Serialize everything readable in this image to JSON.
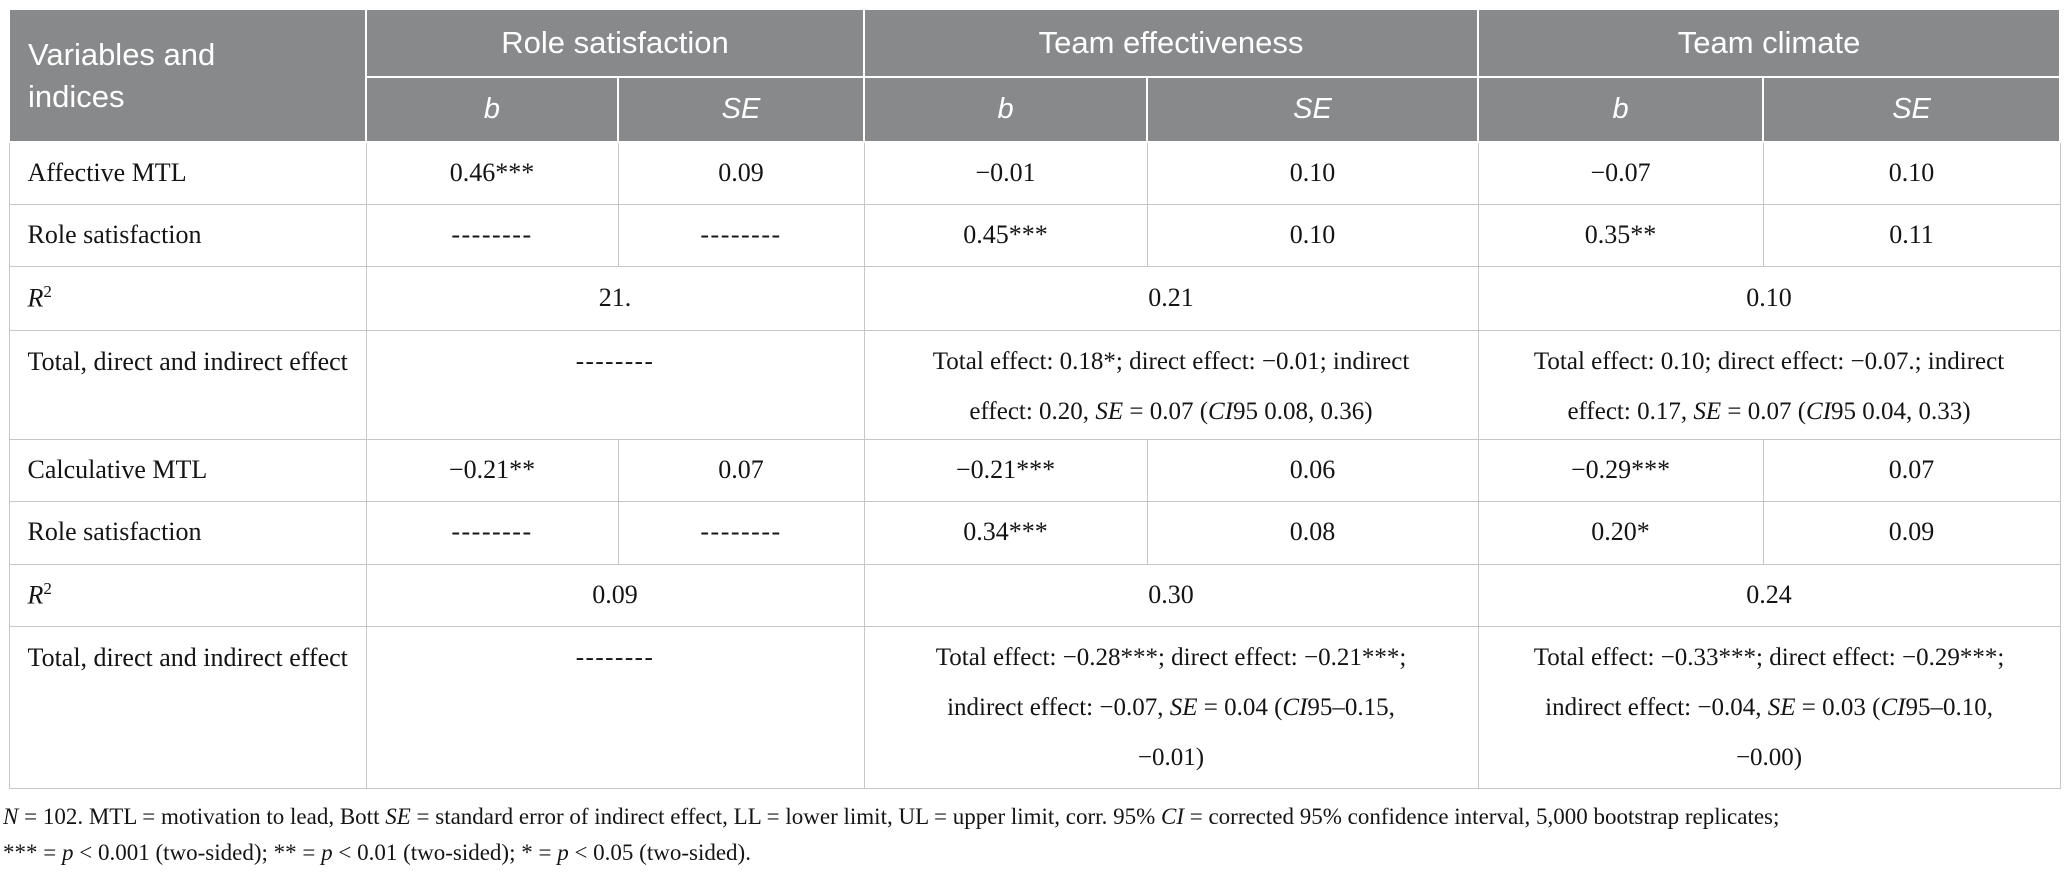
{
  "colors": {
    "header_bg": "#87898b",
    "header_text": "#ffffff",
    "grid_line": "#c6c6c6",
    "body_text": "#141414"
  },
  "header": {
    "variables_label": "Variables and indices",
    "groups": [
      "Role satisfaction",
      "Team effectiveness",
      "Team climate"
    ],
    "sub_b": "b",
    "sub_se": "SE"
  },
  "rows": {
    "affective_mtl": {
      "label": "Affective MTL",
      "rs_b": "0.46***",
      "rs_se": "0.09",
      "te_b": "−0.01",
      "te_se": "0.10",
      "tc_b": "−0.07",
      "tc_se": "0.10"
    },
    "role_sat_1": {
      "label": "Role satisfaction",
      "rs_b": "--------",
      "rs_se": "--------",
      "te_b": "0.45***",
      "te_se": "0.10",
      "tc_b": "0.35**",
      "tc_se": "0.11"
    },
    "r2_1": {
      "label_base": "R",
      "label_sup": "2",
      "rs": "21.",
      "te": "0.21",
      "tc": "0.10"
    },
    "effects_1": {
      "label": "Total, direct and indirect effect",
      "rs": "--------",
      "te_segments": [
        {
          "t": "Total effect: 0.18*; direct effect: −0.01; indirect"
        },
        {
          "br": true
        },
        {
          "t": "effect: 0.20, "
        },
        {
          "t": "SE",
          "i": true
        },
        {
          "t": " = 0.07 ("
        },
        {
          "t": "CI",
          "i": true
        },
        {
          "t": "95 0.08, 0.36)"
        }
      ],
      "tc_segments": [
        {
          "t": "Total effect: 0.10; direct effect: −0.07.; indirect"
        },
        {
          "br": true
        },
        {
          "t": "effect: 0.17, "
        },
        {
          "t": "SE",
          "i": true
        },
        {
          "t": " = 0.07 ("
        },
        {
          "t": "CI",
          "i": true
        },
        {
          "t": "95 0.04, 0.33)"
        }
      ]
    },
    "calculative_mtl": {
      "label": "Calculative MTL",
      "rs_b": "−0.21**",
      "rs_se": "0.07",
      "te_b": "−0.21***",
      "te_se": "0.06",
      "tc_b": "−0.29***",
      "tc_se": "0.07"
    },
    "role_sat_2": {
      "label": "Role satisfaction",
      "rs_b": "--------",
      "rs_se": "--------",
      "te_b": "0.34***",
      "te_se": "0.08",
      "tc_b": "0.20*",
      "tc_se": "0.09"
    },
    "r2_2": {
      "label_base": "R",
      "label_sup": "2",
      "rs": "0.09",
      "te": "0.30",
      "tc": "0.24"
    },
    "effects_2": {
      "label": "Total, direct and indirect effect",
      "rs": "--------",
      "te_segments": [
        {
          "t": "Total effect: −0.28***; direct effect: −0.21***;"
        },
        {
          "br": true
        },
        {
          "t": "indirect effect: −0.07, "
        },
        {
          "t": "SE",
          "i": true
        },
        {
          "t": " = 0.04 ("
        },
        {
          "t": "CI",
          "i": true
        },
        {
          "t": "95–0.15,"
        },
        {
          "br": true
        },
        {
          "t": "−0.01)"
        }
      ],
      "tc_segments": [
        {
          "t": "Total effect: −0.33***; direct effect: −0.29***;"
        },
        {
          "br": true
        },
        {
          "t": "indirect effect: −0.04, "
        },
        {
          "t": "SE",
          "i": true
        },
        {
          "t": " = 0.03 ("
        },
        {
          "t": "CI",
          "i": true
        },
        {
          "t": "95–0.10,"
        },
        {
          "br": true
        },
        {
          "t": "−0.00)"
        }
      ]
    }
  },
  "footnote": {
    "line1_segments": [
      {
        "t": "N",
        "i": true
      },
      {
        "t": " = 102. MTL = motivation to lead, Bott "
      },
      {
        "t": "SE",
        "i": true
      },
      {
        "t": " = standard error of indirect effect, LL = lower limit, UL = upper limit, corr. 95% "
      },
      {
        "t": "CI",
        "i": true
      },
      {
        "t": " = corrected 95% confidence interval, 5,000 bootstrap replicates;"
      }
    ],
    "line2_segments": [
      {
        "t": "*** = "
      },
      {
        "t": "p",
        "i": true
      },
      {
        "t": " < 0.001 (two-sided); ** = "
      },
      {
        "t": "p",
        "i": true
      },
      {
        "t": " < 0.01 (two-sided); * = "
      },
      {
        "t": "p",
        "i": true
      },
      {
        "t": " < 0.05 (two-sided)."
      }
    ]
  }
}
